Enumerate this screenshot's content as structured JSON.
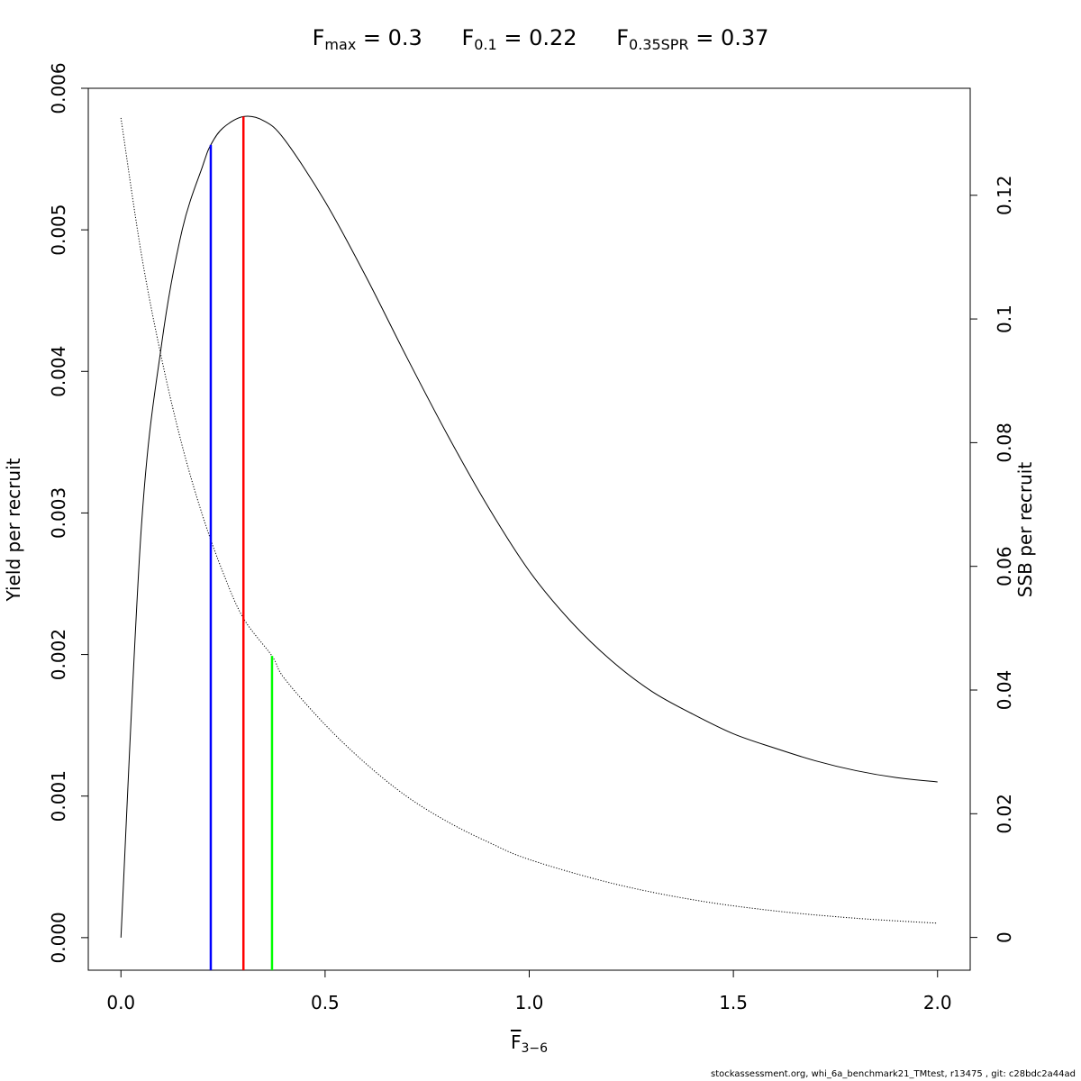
{
  "title": {
    "fmax": {
      "symbol": "F",
      "sub": "max",
      "text": "= 0.3"
    },
    "f01": {
      "symbol": "F",
      "sub": "0.1",
      "text": "= 0.22"
    },
    "f35": {
      "symbol": "F",
      "sub": "0.35SPR",
      "text": "= 0.37"
    }
  },
  "footer": "stockassessment.org, whi_6a_benchmark21_TMtest, r13475 , git: c28bdc2a44ad",
  "chart_data": {
    "type": "line",
    "xlabel": {
      "symbol": "F",
      "sub": "3−6"
    },
    "ylabel": "Yield per recruit",
    "y2label": "SSB per recruit",
    "xlim": [
      -0.08,
      2.08
    ],
    "ylim": [
      -0.00023,
      0.006
    ],
    "y2lim": [
      -0.0053,
      0.1373
    ],
    "x_ticks": [
      0,
      0.5,
      1,
      1.5,
      2
    ],
    "x_tick_labels": [
      "0.0",
      "0.5",
      "1.0",
      "1.5",
      "2.0"
    ],
    "y_ticks": [
      0,
      0.001,
      0.002,
      0.003,
      0.004,
      0.005,
      0.006
    ],
    "y_tick_labels": [
      "0.000",
      "0.001",
      "0.002",
      "0.003",
      "0.004",
      "0.005",
      "0.006"
    ],
    "y2_ticks": [
      0,
      0.02,
      0.04,
      0.06,
      0.08,
      0.1,
      0.12
    ],
    "y2_tick_labels": [
      "0",
      "0.02",
      "0.04",
      "0.06",
      "0.08",
      "0.1",
      "0.12"
    ],
    "grid": false,
    "series": [
      {
        "axis": "left",
        "color": "#000000",
        "style": "solid",
        "x": [
          0,
          0.05,
          0.1,
          0.15,
          0.2,
          0.22,
          0.25,
          0.3,
          0.35,
          0.4,
          0.5,
          0.6,
          0.7,
          0.8,
          0.9,
          1.0,
          1.1,
          1.2,
          1.3,
          1.4,
          1.5,
          1.6,
          1.7,
          1.8,
          1.9,
          2.0
        ],
        "y": [
          0,
          0.0029,
          0.0042,
          0.005,
          0.00545,
          0.0056,
          0.00572,
          0.0058,
          0.00577,
          0.00564,
          0.0052,
          0.00467,
          0.0041,
          0.00355,
          0.00304,
          0.00259,
          0.00224,
          0.00196,
          0.00174,
          0.00158,
          0.00144,
          0.00134,
          0.00125,
          0.00118,
          0.00113,
          0.0011
        ]
      },
      {
        "axis": "right",
        "color": "#000000",
        "style": "dotted",
        "x": [
          0,
          0.05,
          0.1,
          0.15,
          0.2,
          0.25,
          0.3,
          0.37,
          0.4,
          0.5,
          0.6,
          0.7,
          0.8,
          0.9,
          1.0,
          1.2,
          1.4,
          1.6,
          1.8,
          2.0
        ],
        "y": [
          0.1325,
          0.1105,
          0.0935,
          0.0795,
          0.0682,
          0.059,
          0.0516,
          0.0455,
          0.0419,
          0.0344,
          0.0281,
          0.0228,
          0.0187,
          0.0154,
          0.0126,
          0.0088,
          0.0061,
          0.0043,
          0.0031,
          0.0023
        ]
      }
    ],
    "reference_lines": [
      {
        "x": 0.22,
        "y_top": 0.0056,
        "color": "#0000ff"
      },
      {
        "x": 0.3,
        "y_top": 0.0058,
        "color": "#ff0000"
      },
      {
        "x": 0.37,
        "y_top": 0.00199,
        "color": "#00ff00"
      }
    ]
  }
}
